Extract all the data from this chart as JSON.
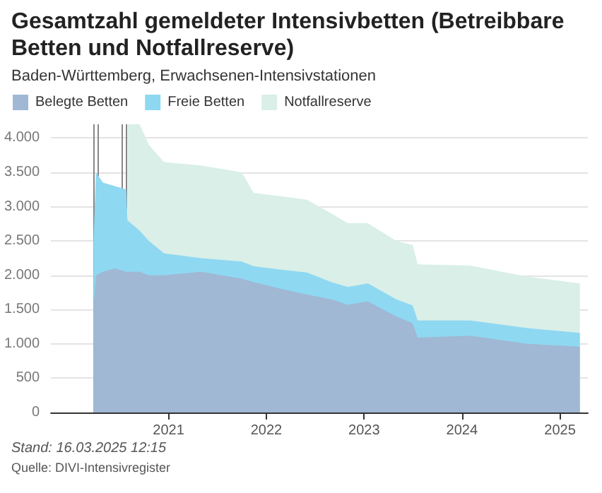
{
  "chart_data": {
    "type": "area",
    "title": "Gesamtzahl gemeldeter Intensivbetten (Betreibbare Betten und Notfallreserve)",
    "subtitle": "Baden-Württemberg, Erwachsenen-Intensivstationen",
    "annotations": [
      "Stand: 16.03.2025 12:15",
      "Quelle: DIVI-Intensivregister"
    ],
    "x": [
      "2020-03-27",
      "2020-04-05",
      "2020-05-01",
      "2020-06-15",
      "2020-07-27",
      "2020-08-01",
      "2020-09-15",
      "2020-10-20",
      "2020-12-15",
      "2021-05-01",
      "2021-10-01",
      "2021-11-15",
      "2022-03-01",
      "2022-06-01",
      "2022-09-01",
      "2022-11-01",
      "2023-01-15",
      "2023-05-01",
      "2023-07-01",
      "2023-07-20",
      "2024-02-01",
      "2024-09-01",
      "2025-03-16"
    ],
    "stacked": true,
    "series": [
      {
        "name": "Belegte Betten",
        "color": "#a0b8d4",
        "values": [
          1500,
          2000,
          2050,
          2100,
          2050,
          2050,
          2050,
          2000,
          2000,
          2050,
          1950,
          1900,
          1800,
          1720,
          1650,
          1570,
          1620,
          1400,
          1300,
          1090,
          1120,
          1000,
          960
        ]
      },
      {
        "name": "Freie Betten",
        "color": "#8ed8f2",
        "values": [
          1000,
          1500,
          1300,
          1200,
          1200,
          750,
          600,
          500,
          320,
          200,
          250,
          230,
          280,
          320,
          250,
          260,
          260,
          250,
          260,
          250,
          220,
          230,
          200
        ]
      },
      {
        "name": "Notfallreserve",
        "color": "#d9efe8",
        "values": [
          null,
          null,
          null,
          null,
          null,
          1400,
          1550,
          1400,
          1330,
          1350,
          1300,
          1070,
          1070,
          1060,
          1000,
          930,
          880,
          850,
          880,
          820,
          800,
          750,
          720
        ]
      }
    ],
    "xlim": [
      "2019-10-20",
      "2025-04-15"
    ],
    "xticks": [
      {
        "value": "2021-01-01",
        "label": "2021"
      },
      {
        "value": "2022-01-01",
        "label": "2022"
      },
      {
        "value": "2023-01-01",
        "label": "2023"
      },
      {
        "value": "2024-01-01",
        "label": "2024"
      },
      {
        "value": "2025-01-01",
        "label": "2025"
      }
    ],
    "ylim": [
      0,
      4200
    ],
    "yticks": [
      {
        "value": 0,
        "label": "0"
      },
      {
        "value": 500,
        "label": "500"
      },
      {
        "value": 1000,
        "label": "1.000"
      },
      {
        "value": 1500,
        "label": "1.500"
      },
      {
        "value": 2000,
        "label": "2.000"
      },
      {
        "value": 2500,
        "label": "2.500"
      },
      {
        "value": 3000,
        "label": "3.000"
      },
      {
        "value": 3500,
        "label": "3.500"
      },
      {
        "value": 4000,
        "label": "4.000"
      }
    ],
    "ref_lines": [
      {
        "axis": "x",
        "value": "2020-03-28",
        "color": "#888888"
      },
      {
        "axis": "x",
        "value": "2020-04-10",
        "color": "#888888"
      },
      {
        "axis": "x",
        "value": "2020-07-12",
        "color": "#888888"
      },
      {
        "axis": "x",
        "value": "2020-07-26",
        "color": "#888888"
      }
    ],
    "grid": "y",
    "legend": "top left"
  }
}
